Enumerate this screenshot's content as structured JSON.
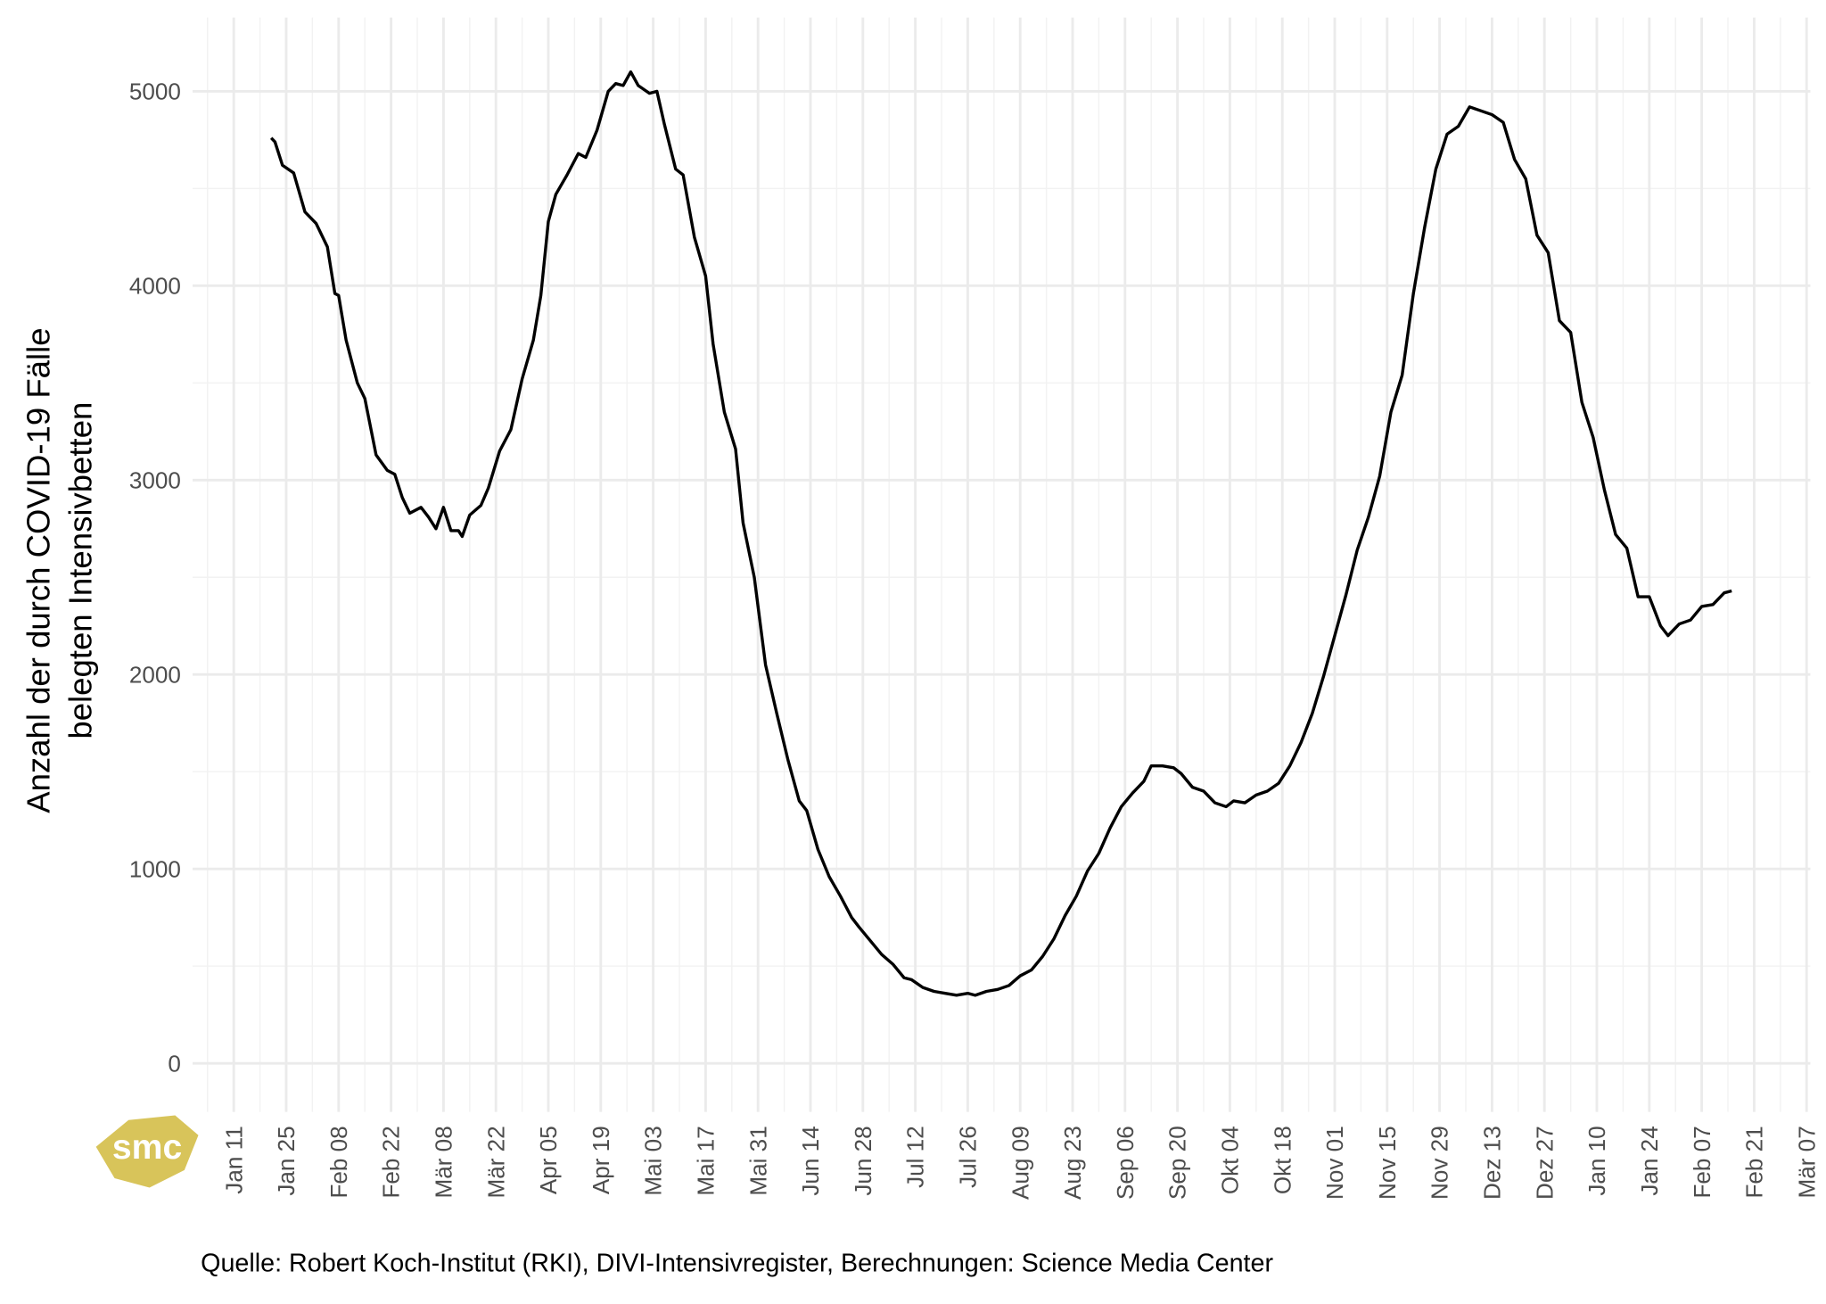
{
  "chart_data": {
    "type": "line",
    "ylabel": [
      "Anzahl der durch COVID-19 Fälle",
      "belegten Intensivbetten"
    ],
    "source": "Quelle: Robert Koch-Institut (RKI), DIVI-Intensivregister, Berechnungen: Science Media Center",
    "logo": "smc",
    "color": "#000000",
    "grid": true,
    "x": [
      10,
      11,
      13,
      16,
      19,
      22,
      25,
      27,
      28,
      30,
      33,
      35,
      38,
      41,
      43,
      45,
      47,
      50,
      52,
      54,
      56,
      58,
      60,
      61,
      63,
      66,
      68,
      71,
      74,
      77,
      80,
      82,
      84,
      86,
      89,
      92,
      94,
      97,
      100,
      102,
      104,
      106,
      108,
      111,
      113,
      115,
      118,
      120,
      123,
      126,
      128,
      131,
      134,
      136,
      139,
      142,
      145,
      148,
      151,
      153,
      156,
      159,
      162,
      165,
      167,
      170,
      173,
      176,
      179,
      181,
      184,
      187,
      190,
      193,
      196,
      198,
      201,
      204,
      207,
      210,
      213,
      216,
      219,
      222,
      225,
      228,
      231,
      234,
      237,
      240,
      243,
      245,
      248,
      251,
      253,
      256,
      259,
      262,
      265,
      267,
      270,
      273,
      276,
      279,
      282,
      285,
      288,
      291,
      294,
      297,
      300,
      303,
      306,
      309,
      312,
      315,
      318,
      321,
      324,
      327,
      330,
      333,
      336,
      339,
      342,
      345,
      348,
      351,
      354,
      357,
      360,
      363,
      366,
      369,
      372,
      375,
      378,
      381,
      383,
      386,
      389,
      392,
      395,
      398,
      400
    ],
    "values": [
      4760,
      4740,
      4620,
      4580,
      4380,
      4320,
      4200,
      3960,
      3950,
      3720,
      3500,
      3420,
      3130,
      3050,
      3030,
      2910,
      2830,
      2860,
      2810,
      2750,
      2860,
      2740,
      2740,
      2710,
      2820,
      2870,
      2960,
      3150,
      3260,
      3520,
      3720,
      3950,
      4330,
      4470,
      4570,
      4680,
      4660,
      4800,
      5000,
      5040,
      5030,
      5100,
      5030,
      4990,
      5000,
      4830,
      4600,
      4570,
      4250,
      4050,
      3700,
      3350,
      3160,
      2780,
      2500,
      2050,
      1800,
      1560,
      1350,
      1300,
      1100,
      960,
      860,
      750,
      700,
      630,
      560,
      510,
      440,
      430,
      390,
      370,
      360,
      350,
      360,
      350,
      370,
      380,
      400,
      450,
      480,
      550,
      640,
      760,
      860,
      990,
      1080,
      1210,
      1320,
      1390,
      1450,
      1530,
      1530,
      1520,
      1490,
      1420,
      1400,
      1340,
      1320,
      1350,
      1340,
      1380,
      1400,
      1440,
      1530,
      1650,
      1800,
      1990,
      2200,
      2410,
      2640,
      2810,
      3020,
      3350,
      3540,
      3960,
      4300,
      4600,
      4780,
      4820,
      4920,
      4900,
      4880,
      4840,
      4650,
      4550,
      4260,
      4170,
      3820,
      3760,
      3400,
      3220,
      2950,
      2720,
      2650,
      2400,
      2400,
      2250,
      2200,
      2260,
      2280,
      2350,
      2360,
      2420,
      2430
    ],
    "xlim": [
      -11,
      421
    ],
    "xticks": [
      {
        "value": 0,
        "label": "Jan 11"
      },
      {
        "value": 14,
        "label": "Jan 25"
      },
      {
        "value": 28,
        "label": "Feb 08"
      },
      {
        "value": 42,
        "label": "Feb 22"
      },
      {
        "value": 56,
        "label": "Mär 08"
      },
      {
        "value": 70,
        "label": "Mär 22"
      },
      {
        "value": 84,
        "label": "Apr 05"
      },
      {
        "value": 98,
        "label": "Apr 19"
      },
      {
        "value": 112,
        "label": "Mai 03"
      },
      {
        "value": 126,
        "label": "Mai 17"
      },
      {
        "value": 140,
        "label": "Mai 31"
      },
      {
        "value": 154,
        "label": "Jun 14"
      },
      {
        "value": 168,
        "label": "Jun 28"
      },
      {
        "value": 182,
        "label": "Jul 12"
      },
      {
        "value": 196,
        "label": "Jul 26"
      },
      {
        "value": 210,
        "label": "Aug 09"
      },
      {
        "value": 224,
        "label": "Aug 23"
      },
      {
        "value": 238,
        "label": "Sep 06"
      },
      {
        "value": 252,
        "label": "Sep 20"
      },
      {
        "value": 266,
        "label": "Okt 04"
      },
      {
        "value": 280,
        "label": "Okt 18"
      },
      {
        "value": 294,
        "label": "Nov 01"
      },
      {
        "value": 308,
        "label": "Nov 15"
      },
      {
        "value": 322,
        "label": "Nov 29"
      },
      {
        "value": 336,
        "label": "Dez 13"
      },
      {
        "value": 350,
        "label": "Dez 27"
      },
      {
        "value": 364,
        "label": "Jan 10"
      },
      {
        "value": 378,
        "label": "Jan 24"
      },
      {
        "value": 392,
        "label": "Feb 07"
      },
      {
        "value": 406,
        "label": "Feb 21"
      },
      {
        "value": 420,
        "label": "Mär 07"
      }
    ],
    "ylim": [
      -250,
      5380
    ],
    "yticks": [
      0,
      1000,
      2000,
      3000,
      4000,
      5000
    ]
  }
}
